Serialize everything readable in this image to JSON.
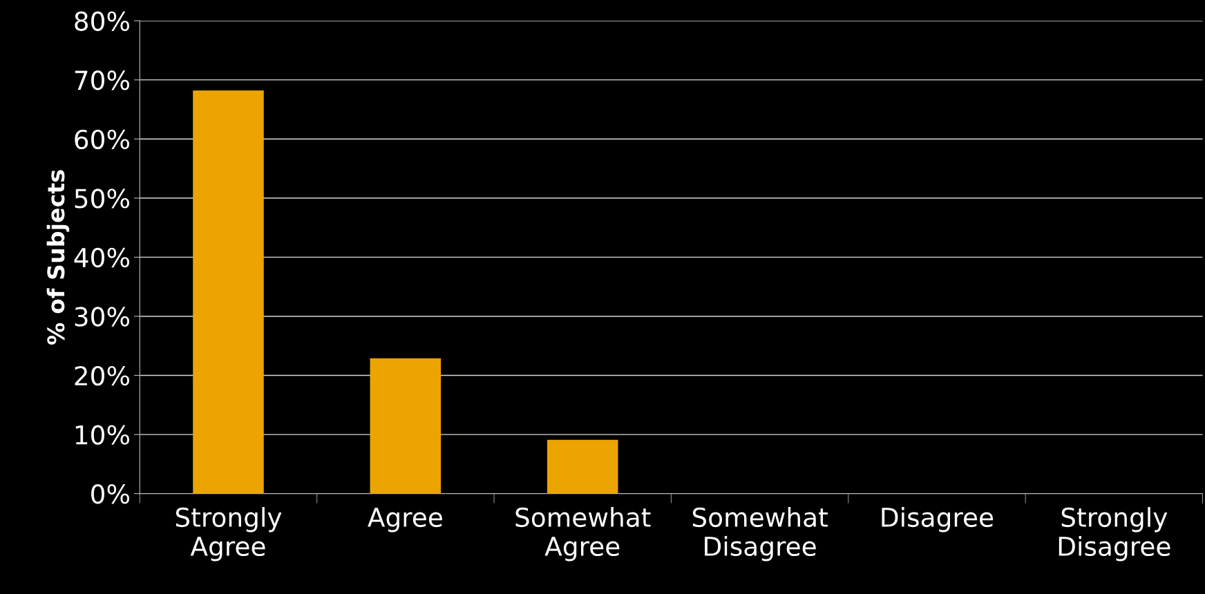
{
  "chart_data": {
    "type": "bar",
    "ylabel": "% of Subjects",
    "categories": [
      "Strongly Agree",
      "Agree",
      "Somewhat Agree",
      "Somewhat Disagree",
      "Disagree",
      "Strongly Disagree"
    ],
    "values": [
      68.2,
      22.9,
      9.1,
      0,
      0,
      0
    ],
    "color": "#eba400",
    "ylim": [
      0,
      80
    ],
    "yticks": [
      {
        "value": 0,
        "label": "0%"
      },
      {
        "value": 10,
        "label": "10%"
      },
      {
        "value": 20,
        "label": "20%"
      },
      {
        "value": 30,
        "label": "30%"
      },
      {
        "value": 40,
        "label": "40%"
      },
      {
        "value": 50,
        "label": "50%"
      },
      {
        "value": 60,
        "label": "60%"
      },
      {
        "value": 70,
        "label": "70%"
      },
      {
        "value": 80,
        "label": "80%"
      }
    ],
    "grid": "y"
  }
}
